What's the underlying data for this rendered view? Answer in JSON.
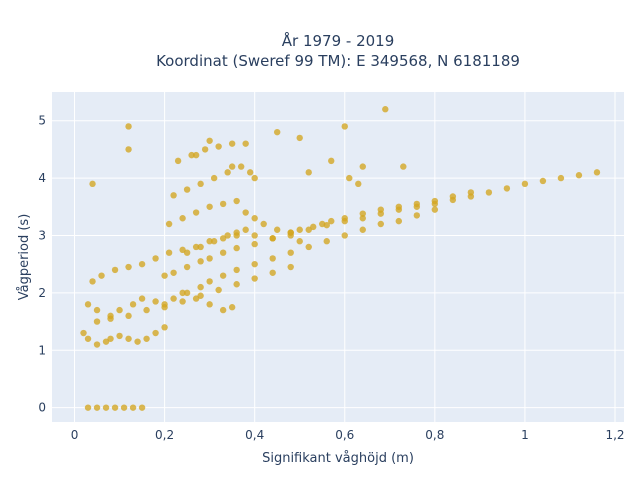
{
  "chart_data": {
    "type": "scatter",
    "title_lines": [
      "År 1979 - 2019",
      "Koordinat (Sweref 99 TM): E 349568, N 6181189"
    ],
    "xlabel": "Signifikant våghöjd (m)",
    "ylabel": "Vågperiod (s)",
    "xlim": [
      -0.05,
      1.22
    ],
    "ylim": [
      -0.25,
      5.5
    ],
    "xticks": [
      0,
      0.2,
      0.4,
      0.6,
      0.8,
      1,
      1.2
    ],
    "xtick_labels": [
      "0",
      "0,2",
      "0,4",
      "0,6",
      "0,8",
      "1",
      "1,2"
    ],
    "yticks": [
      0,
      1,
      2,
      3,
      4,
      5
    ],
    "ytick_labels": [
      "0",
      "1",
      "2",
      "3",
      "4",
      "5"
    ],
    "grid": true,
    "plot_background": "#e5ecf6",
    "marker_color": "#d4a520",
    "series": [
      {
        "x": [
          0.03,
          0.05,
          0.07,
          0.09,
          0.11,
          0.13,
          0.15,
          0.02,
          0.03,
          0.05,
          0.07,
          0.08,
          0.1,
          0.12,
          0.14,
          0.16,
          0.18,
          0.2,
          0.03,
          0.05,
          0.08,
          0.1,
          0.13,
          0.15,
          0.18,
          0.2,
          0.22,
          0.25,
          0.28,
          0.04,
          0.06,
          0.09,
          0.12,
          0.15,
          0.18,
          0.21,
          0.24,
          0.27,
          0.3,
          0.33,
          0.36,
          0.05,
          0.08,
          0.12,
          0.16,
          0.2,
          0.24,
          0.28,
          0.32,
          0.36,
          0.4,
          0.44,
          0.48,
          0.2,
          0.22,
          0.25,
          0.28,
          0.3,
          0.33,
          0.36,
          0.4,
          0.44,
          0.48,
          0.52,
          0.56,
          0.6,
          0.64,
          0.68,
          0.72,
          0.76,
          0.8,
          0.84,
          0.88,
          0.92,
          0.96,
          1.0,
          1.04,
          1.08,
          1.12,
          1.16,
          0.21,
          0.24,
          0.27,
          0.3,
          0.33,
          0.36,
          0.38,
          0.4,
          0.42,
          0.45,
          0.48,
          0.5,
          0.22,
          0.25,
          0.28,
          0.31,
          0.34,
          0.37,
          0.4,
          0.23,
          0.26,
          0.29,
          0.32,
          0.35,
          0.24,
          0.27,
          0.3,
          0.33,
          0.35,
          0.25,
          0.28,
          0.31,
          0.34,
          0.36,
          0.38,
          0.4,
          0.44,
          0.48,
          0.5,
          0.53,
          0.55,
          0.57,
          0.6,
          0.64,
          0.68,
          0.72,
          0.76,
          0.8,
          0.84,
          0.88,
          0.3,
          0.33,
          0.36,
          0.4,
          0.44,
          0.48,
          0.52,
          0.56,
          0.6,
          0.64,
          0.68,
          0.72,
          0.76,
          0.8,
          0.04,
          0.12,
          0.12,
          0.35,
          0.39,
          0.45,
          0.5,
          0.52,
          0.6,
          0.64,
          0.69,
          0.57,
          0.61,
          0.63,
          0.73,
          0.38,
          0.3,
          0.27
        ],
        "y": [
          0,
          0,
          0,
          0,
          0,
          0,
          0,
          1.3,
          1.2,
          1.1,
          1.15,
          1.2,
          1.25,
          1.2,
          1.15,
          1.2,
          1.3,
          1.4,
          1.8,
          1.7,
          1.6,
          1.7,
          1.8,
          1.9,
          1.85,
          1.8,
          1.9,
          2.0,
          2.1,
          2.2,
          2.3,
          2.4,
          2.45,
          2.5,
          2.6,
          2.7,
          2.75,
          2.8,
          2.9,
          2.95,
          3.0,
          1.5,
          1.55,
          1.6,
          1.7,
          1.75,
          1.85,
          1.95,
          2.05,
          2.15,
          2.25,
          2.35,
          2.45,
          2.3,
          2.35,
          2.45,
          2.55,
          2.6,
          2.7,
          2.78,
          2.85,
          2.95,
          3.05,
          3.1,
          3.18,
          3.25,
          3.3,
          3.38,
          3.45,
          3.5,
          3.55,
          3.62,
          3.68,
          3.75,
          3.82,
          3.9,
          3.95,
          4.0,
          4.05,
          4.1,
          3.2,
          3.3,
          3.4,
          3.5,
          3.55,
          3.6,
          3.4,
          3.3,
          3.2,
          3.1,
          3.0,
          2.9,
          3.7,
          3.8,
          3.9,
          4.0,
          4.1,
          4.2,
          4.0,
          4.3,
          4.4,
          4.5,
          4.55,
          4.6,
          2.0,
          1.9,
          1.8,
          1.7,
          1.75,
          2.7,
          2.8,
          2.9,
          3.0,
          3.05,
          3.1,
          3.0,
          2.95,
          3.05,
          3.1,
          3.15,
          3.2,
          3.25,
          3.3,
          3.38,
          3.45,
          3.5,
          3.55,
          3.6,
          3.68,
          3.75,
          2.2,
          2.3,
          2.4,
          2.5,
          2.6,
          2.7,
          2.8,
          2.9,
          3.0,
          3.1,
          3.2,
          3.25,
          3.35,
          3.45,
          3.9,
          4.9,
          4.5,
          4.2,
          4.1,
          4.8,
          4.7,
          4.1,
          4.9,
          4.2,
          5.2,
          4.3,
          4.0,
          3.9,
          4.2,
          4.6,
          4.65,
          4.4
        ]
      }
    ]
  }
}
